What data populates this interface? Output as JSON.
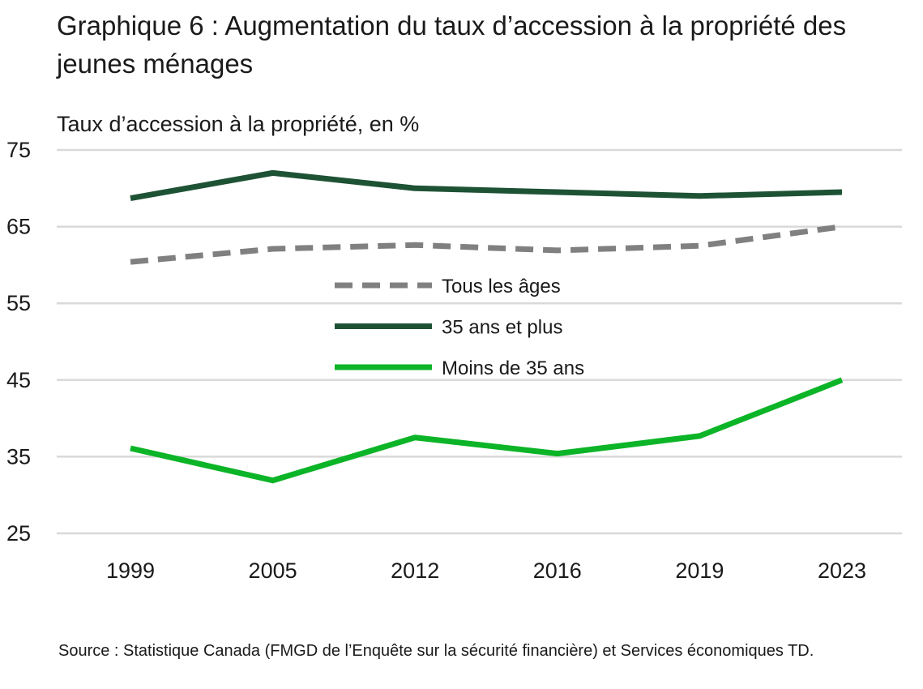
{
  "chart_data": {
    "type": "line",
    "title": "Graphique 6 : Augmentation du taux d’accession à la propriété des jeunes ménages",
    "ylabel": "Taux d’accession à la propriété, en %",
    "xlabel": "",
    "categories": [
      "1999",
      "2005",
      "2012",
      "2016",
      "2019",
      "2023"
    ],
    "ylim": [
      25,
      75
    ],
    "yticks": [
      75,
      65,
      55,
      45,
      35,
      25
    ],
    "grid": true,
    "legend_position": "center",
    "series": [
      {
        "name": "Tous les âges",
        "values": [
          60.4,
          62.1,
          62.6,
          61.9,
          62.5,
          65.0
        ],
        "color": "#808080",
        "dashed": true
      },
      {
        "name": "35 ans et plus",
        "values": [
          68.7,
          72.0,
          70.0,
          69.5,
          69.0,
          69.5
        ],
        "color": "#1e5235",
        "dashed": false
      },
      {
        "name": "Moins de 35 ans",
        "values": [
          36.1,
          31.9,
          37.5,
          35.4,
          37.7,
          45.0
        ],
        "color": "#0cb427",
        "dashed": false
      }
    ],
    "source": "Source : Statistique Canada (FMGD de l’Enquête sur la sécurité financière) et Services économiques TD."
  }
}
